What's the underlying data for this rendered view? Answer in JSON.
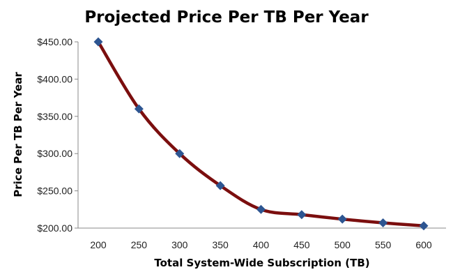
{
  "chart_data": {
    "type": "line",
    "title": "Projected Price Per TB Per Year",
    "xlabel": "Total System-Wide Subscription (TB)",
    "ylabel": "Price Per TB Per Year",
    "x": [
      200,
      250,
      300,
      350,
      400,
      450,
      500,
      550,
      600
    ],
    "series": [
      {
        "name": "Price Per TB Per Year",
        "values": [
          450,
          360,
          300,
          257,
          225,
          218,
          212,
          207,
          203
        ]
      }
    ],
    "xticks": [
      "200",
      "250",
      "300",
      "350",
      "400",
      "450",
      "500",
      "550",
      "600"
    ],
    "yticks": [
      "$200.00",
      "$250.00",
      "$300.00",
      "$350.00",
      "$400.00",
      "$450.00"
    ],
    "ytick_values": [
      200,
      250,
      300,
      350,
      400,
      450
    ],
    "ylim": [
      200,
      450
    ],
    "xlim": [
      200,
      600
    ],
    "grid": false,
    "legend": "none",
    "colors": {
      "line": "#7b0e0e",
      "marker": "#2d5591",
      "axis": "#888888"
    }
  }
}
